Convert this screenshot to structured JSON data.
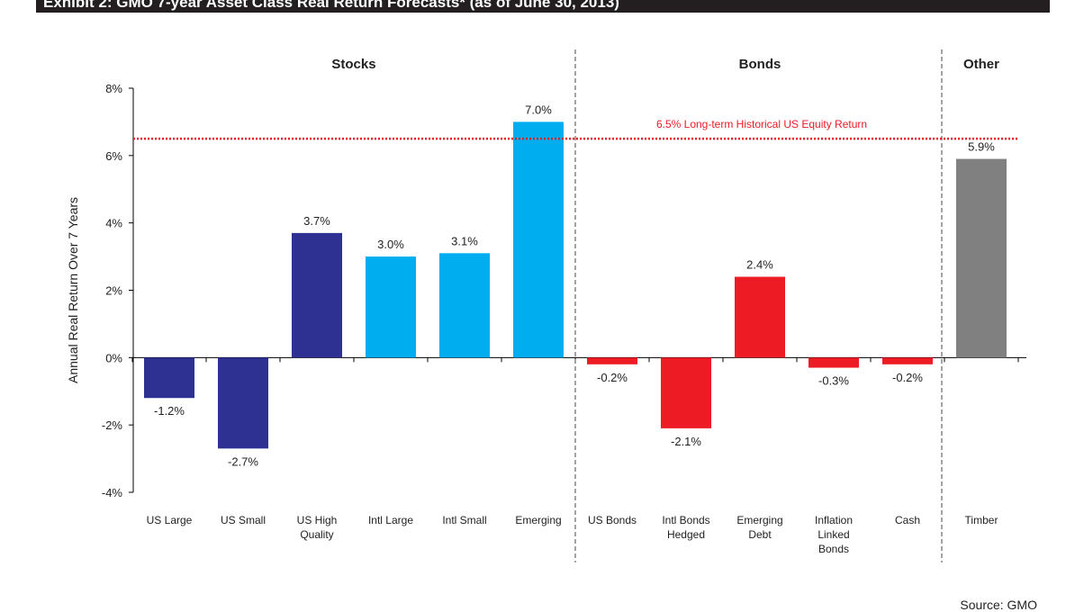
{
  "title": "Exhibit 2: GMO 7-year Asset Class Real Return Forecasts*  (as of June 30, 2013)",
  "source": "Source: GMO",
  "chart_data": {
    "type": "bar",
    "ylabel": "Annual Real Return Over 7 Years",
    "ylim": [
      -4,
      8
    ],
    "yticks": [
      -4,
      -2,
      0,
      2,
      4,
      6,
      8
    ],
    "ytick_labels": [
      "-4%",
      "-2%",
      "0%",
      "2%",
      "4%",
      "6%",
      "8%"
    ],
    "groups": [
      {
        "name": "Stocks",
        "start": 0,
        "end": 5
      },
      {
        "name": "Bonds",
        "start": 6,
        "end": 10
      },
      {
        "name": "Other",
        "start": 11,
        "end": 11
      }
    ],
    "categories": [
      [
        "US Large"
      ],
      [
        "US Small"
      ],
      [
        "US High",
        "Quality"
      ],
      [
        "Intl Large"
      ],
      [
        "Intl Small"
      ],
      [
        "Emerging"
      ],
      [
        "US Bonds"
      ],
      [
        "Intl Bonds",
        "Hedged"
      ],
      [
        "Emerging",
        "Debt"
      ],
      [
        "Inflation",
        "Linked",
        "Bonds"
      ],
      [
        "Cash"
      ],
      [
        "Timber"
      ]
    ],
    "values": [
      -1.2,
      -2.7,
      3.7,
      3.0,
      3.1,
      7.0,
      -0.2,
      -2.1,
      2.4,
      -0.3,
      -0.2,
      5.9
    ],
    "data_labels": [
      "-1.2%",
      "-2.7%",
      "3.7%",
      "3.0%",
      "3.1%",
      "7.0%",
      "-0.2%",
      "-2.1%",
      "2.4%",
      "-0.3%",
      "-0.2%",
      "5.9%"
    ],
    "colors": [
      "#2e3192",
      "#2e3192",
      "#2e3192",
      "#00aeef",
      "#00aeef",
      "#00aeef",
      "#ed1c24",
      "#ed1c24",
      "#ed1c24",
      "#ed1c24",
      "#ed1c24",
      "#808080"
    ],
    "reference_line": {
      "value": 6.5,
      "label": "6.5% Long-term Historical US Equity Return",
      "color": "#ed1c24",
      "style": "dotted"
    },
    "grid": false
  }
}
